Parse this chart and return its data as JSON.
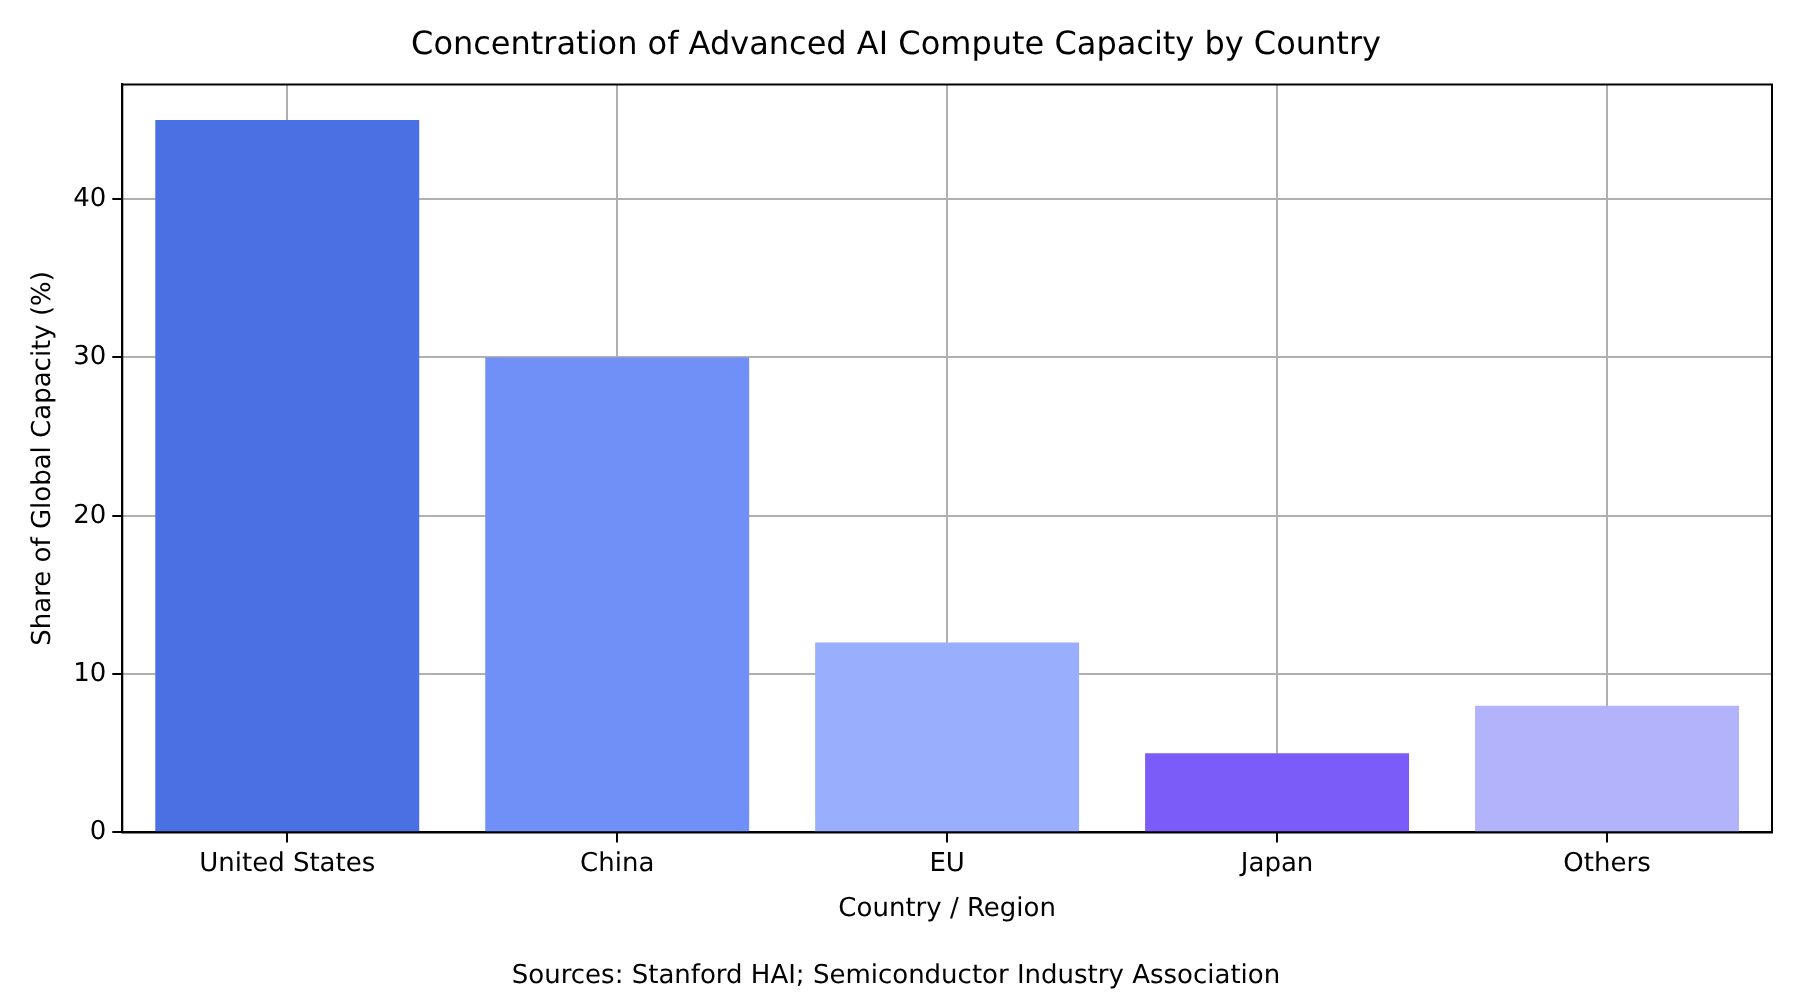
{
  "chart_data": {
    "type": "bar",
    "title": "Concentration of Advanced AI Compute Capacity by Country",
    "xlabel": "Country / Region",
    "ylabel": "Share of Global Capacity (%)",
    "categories": [
      "United States",
      "China",
      "EU",
      "Japan",
      "Others"
    ],
    "values": [
      45,
      30,
      12,
      5,
      8
    ],
    "colors": [
      "#4a70e3",
      "#7090f8",
      "#99aefc",
      "#7b5cf9",
      "#b3b3fc"
    ],
    "ylim": [
      0,
      47.25
    ],
    "yticks": [
      0,
      10,
      20,
      30,
      40
    ],
    "grid": true,
    "annotations": [
      "Sources: Stanford HAI; Semiconductor Industry Association"
    ]
  }
}
